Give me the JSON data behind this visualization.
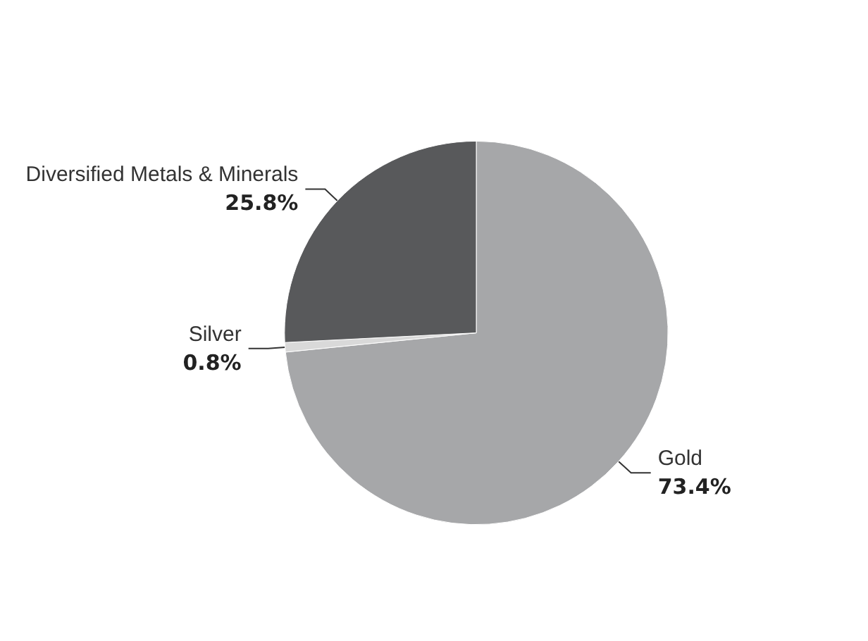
{
  "chart_data": {
    "type": "pie",
    "categories": [
      "Gold",
      "Silver",
      "Diversified Metals & Minerals"
    ],
    "values": [
      73.4,
      0.8,
      25.8
    ],
    "colors": [
      "#a6a7a9",
      "#d9d9d9",
      "#58595b"
    ],
    "value_labels": [
      "73.4%",
      "0.8%",
      "25.8%"
    ],
    "legend": false
  }
}
